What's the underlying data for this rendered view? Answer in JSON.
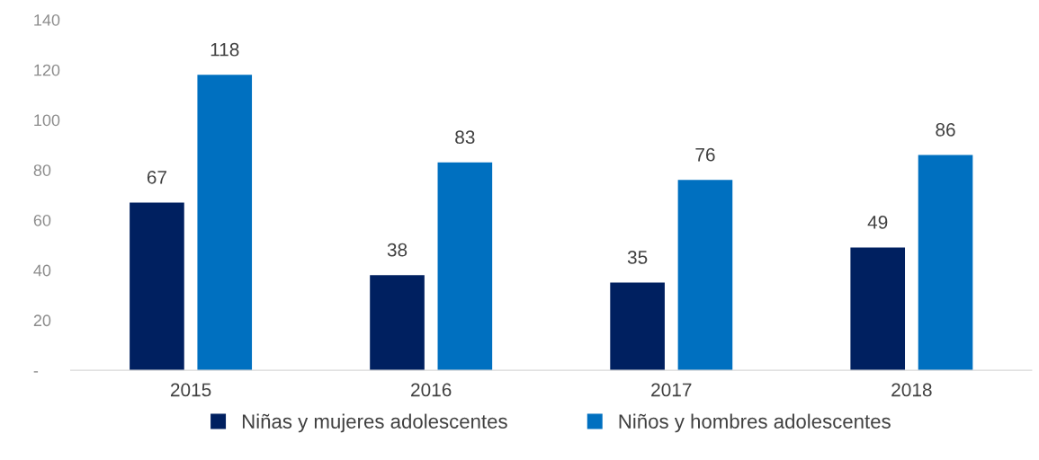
{
  "chart_data": {
    "type": "bar",
    "categories": [
      "2015",
      "2016",
      "2017",
      "2018"
    ],
    "series": [
      {
        "name": "Niñas y mujeres adolescentes",
        "color": "#002060",
        "values": [
          67,
          38,
          35,
          49
        ]
      },
      {
        "name": "Niños y hombres adolescentes",
        "color": "#0070c0",
        "values": [
          118,
          83,
          76,
          86
        ]
      }
    ],
    "ylim": [
      0,
      140
    ],
    "yticks": [
      {
        "value": 0,
        "label": "-"
      },
      20,
      40,
      60,
      80,
      100,
      120,
      140
    ],
    "grid": false,
    "legend": "bottom",
    "data_labels": true
  }
}
